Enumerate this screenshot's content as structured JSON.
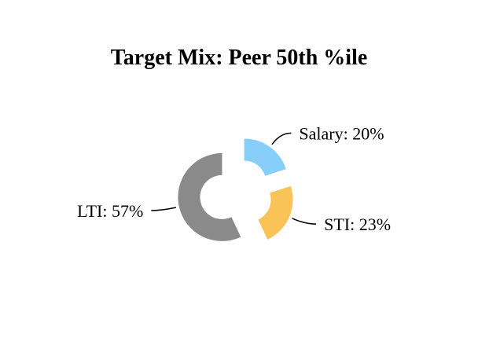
{
  "chart_data": {
    "type": "pie",
    "style": "exploded donut",
    "title": "Target Mix: Peer 50th %ile",
    "slices": [
      {
        "label": "Salary",
        "value": 20,
        "display": "Salary: 20%",
        "color": "#87CEFA"
      },
      {
        "label": "STI",
        "value": 23,
        "display": "STI: 23%",
        "color": "#FAC357"
      },
      {
        "label": "LTI",
        "value": 57,
        "display": "LTI: 57%",
        "color": "#8A8A8A"
      }
    ],
    "legend": "none"
  }
}
